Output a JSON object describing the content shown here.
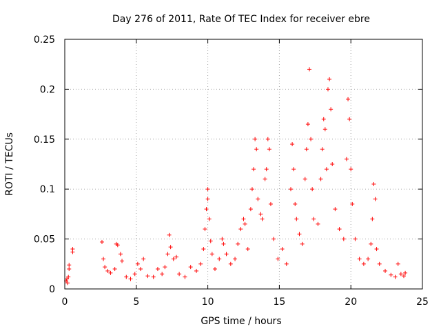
{
  "chart_data": {
    "type": "scatter",
    "title": "Day 276 of 2011, Rate Of TEC Index for receiver ebre",
    "xlabel": "GPS time / hours",
    "ylabel": "ROTI / TECUs",
    "xlim": [
      0,
      25
    ],
    "ylim": [
      0,
      0.25
    ],
    "x_ticks": [
      0,
      5,
      10,
      15,
      20,
      25
    ],
    "x_tick_labels": [
      "0",
      "5",
      "10",
      "15",
      "20",
      "25"
    ],
    "y_ticks": [
      0,
      0.05,
      0.1,
      0.15,
      0.2,
      0.25
    ],
    "y_tick_labels": [
      "0",
      "0.05",
      "0.1",
      "0.15",
      "0.2",
      "0.25"
    ],
    "grid": true,
    "marker": "+",
    "color": "#ff0000",
    "series": [
      {
        "values_xy": [
          [
            0.1,
            0.008
          ],
          [
            0.15,
            0.01
          ],
          [
            0.2,
            0.006
          ],
          [
            0.25,
            0.012
          ],
          [
            0.3,
            0.02
          ],
          [
            0.3,
            0.024
          ],
          [
            0.55,
            0.037
          ],
          [
            0.55,
            0.04
          ],
          [
            2.6,
            0.047
          ],
          [
            2.7,
            0.03
          ],
          [
            2.8,
            0.022
          ],
          [
            3.0,
            0.018
          ],
          [
            3.2,
            0.016
          ],
          [
            3.5,
            0.02
          ],
          [
            3.6,
            0.045
          ],
          [
            3.7,
            0.044
          ],
          [
            3.9,
            0.035
          ],
          [
            4.0,
            0.028
          ],
          [
            4.3,
            0.012
          ],
          [
            4.6,
            0.01
          ],
          [
            4.9,
            0.015
          ],
          [
            5.1,
            0.025
          ],
          [
            5.3,
            0.02
          ],
          [
            5.5,
            0.03
          ],
          [
            5.8,
            0.013
          ],
          [
            6.2,
            0.012
          ],
          [
            6.5,
            0.02
          ],
          [
            6.8,
            0.015
          ],
          [
            7.0,
            0.022
          ],
          [
            7.2,
            0.035
          ],
          [
            7.3,
            0.054
          ],
          [
            7.4,
            0.042
          ],
          [
            7.6,
            0.03
          ],
          [
            7.8,
            0.032
          ],
          [
            8.0,
            0.015
          ],
          [
            8.4,
            0.012
          ],
          [
            8.8,
            0.022
          ],
          [
            9.2,
            0.018
          ],
          [
            9.5,
            0.025
          ],
          [
            9.7,
            0.04
          ],
          [
            9.8,
            0.06
          ],
          [
            9.9,
            0.08
          ],
          [
            10.0,
            0.1
          ],
          [
            10.0,
            0.09
          ],
          [
            10.1,
            0.07
          ],
          [
            10.2,
            0.048
          ],
          [
            10.3,
            0.035
          ],
          [
            10.5,
            0.02
          ],
          [
            10.8,
            0.03
          ],
          [
            11.0,
            0.05
          ],
          [
            11.1,
            0.045
          ],
          [
            11.3,
            0.035
          ],
          [
            11.6,
            0.025
          ],
          [
            11.9,
            0.03
          ],
          [
            12.1,
            0.045
          ],
          [
            12.3,
            0.06
          ],
          [
            12.5,
            0.07
          ],
          [
            12.6,
            0.065
          ],
          [
            12.8,
            0.04
          ],
          [
            13.0,
            0.08
          ],
          [
            13.1,
            0.1
          ],
          [
            13.2,
            0.12
          ],
          [
            13.3,
            0.15
          ],
          [
            13.4,
            0.14
          ],
          [
            13.5,
            0.09
          ],
          [
            13.7,
            0.075
          ],
          [
            13.8,
            0.07
          ],
          [
            14.0,
            0.11
          ],
          [
            14.1,
            0.12
          ],
          [
            14.2,
            0.15
          ],
          [
            14.3,
            0.14
          ],
          [
            14.4,
            0.085
          ],
          [
            14.6,
            0.05
          ],
          [
            14.9,
            0.03
          ],
          [
            15.2,
            0.04
          ],
          [
            15.5,
            0.025
          ],
          [
            15.8,
            0.1
          ],
          [
            15.9,
            0.145
          ],
          [
            16.0,
            0.12
          ],
          [
            16.1,
            0.085
          ],
          [
            16.2,
            0.07
          ],
          [
            16.4,
            0.055
          ],
          [
            16.6,
            0.045
          ],
          [
            16.8,
            0.11
          ],
          [
            16.9,
            0.14
          ],
          [
            17.0,
            0.165
          ],
          [
            17.1,
            0.22
          ],
          [
            17.2,
            0.15
          ],
          [
            17.3,
            0.1
          ],
          [
            17.4,
            0.07
          ],
          [
            17.7,
            0.065
          ],
          [
            17.9,
            0.11
          ],
          [
            18.0,
            0.14
          ],
          [
            18.1,
            0.17
          ],
          [
            18.2,
            0.16
          ],
          [
            18.3,
            0.12
          ],
          [
            18.4,
            0.2
          ],
          [
            18.5,
            0.21
          ],
          [
            18.6,
            0.18
          ],
          [
            18.7,
            0.125
          ],
          [
            18.9,
            0.08
          ],
          [
            19.2,
            0.06
          ],
          [
            19.5,
            0.05
          ],
          [
            19.7,
            0.13
          ],
          [
            19.8,
            0.19
          ],
          [
            19.9,
            0.17
          ],
          [
            20.0,
            0.12
          ],
          [
            20.1,
            0.085
          ],
          [
            20.3,
            0.05
          ],
          [
            20.6,
            0.03
          ],
          [
            20.9,
            0.025
          ],
          [
            21.2,
            0.03
          ],
          [
            21.4,
            0.045
          ],
          [
            21.5,
            0.07
          ],
          [
            21.6,
            0.105
          ],
          [
            21.7,
            0.09
          ],
          [
            21.8,
            0.04
          ],
          [
            22.0,
            0.025
          ],
          [
            22.4,
            0.018
          ],
          [
            22.8,
            0.014
          ],
          [
            23.1,
            0.012
          ],
          [
            23.3,
            0.025
          ],
          [
            23.5,
            0.015
          ],
          [
            23.7,
            0.013
          ],
          [
            23.8,
            0.016
          ]
        ]
      }
    ]
  }
}
